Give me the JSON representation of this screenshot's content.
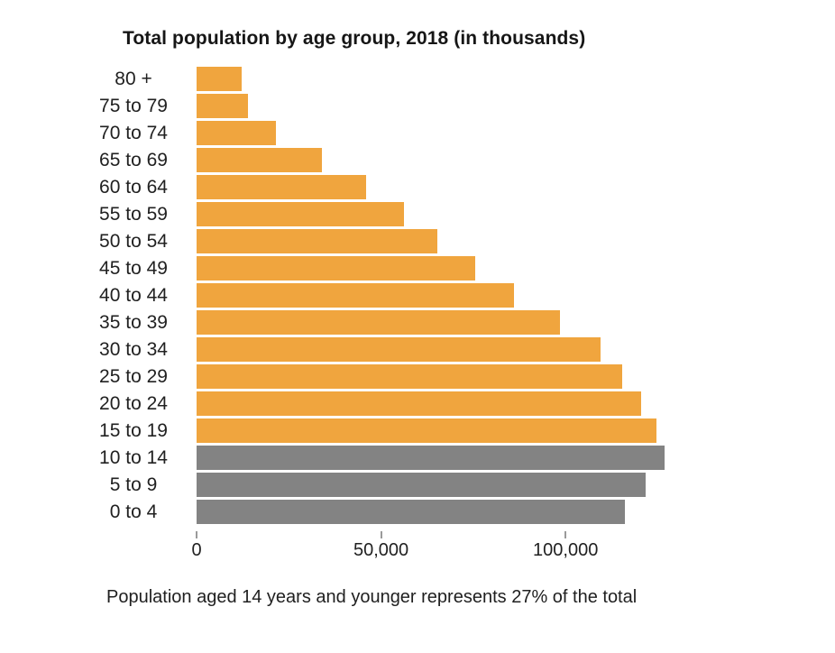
{
  "chart_data": {
    "type": "bar",
    "orientation": "horizontal",
    "title": "Total population by age group, 2018 (in thousands)",
    "categories": [
      "80 +",
      "75 to 79",
      "70 to 74",
      "65 to 69",
      "60 to 64",
      "55 to 59",
      "50 to 54",
      "45 to 49",
      "40 to 44",
      "35 to 39",
      "30 to 34",
      "25 to 29",
      "20 to 24",
      "15 to 19",
      "10 to 14",
      "5 to 9",
      "0 to 4"
    ],
    "values": [
      12200,
      13800,
      21400,
      34000,
      46000,
      56300,
      65200,
      75500,
      85900,
      98400,
      109400,
      115300,
      120500,
      124700,
      126900,
      121600,
      116000
    ],
    "bar_colors": [
      "#F0A53E",
      "#F0A53E",
      "#F0A53E",
      "#F0A53E",
      "#F0A53E",
      "#F0A53E",
      "#F0A53E",
      "#F0A53E",
      "#F0A53E",
      "#F0A53E",
      "#F0A53E",
      "#F0A53E",
      "#F0A53E",
      "#F0A53E",
      "#838383",
      "#838383",
      "#838383"
    ],
    "xlim": [
      0,
      126900
    ],
    "x_ticks": [
      {
        "value": 0,
        "label": "0"
      },
      {
        "value": 50000,
        "label": "50,000"
      },
      {
        "value": 100000,
        "label": "100,000"
      }
    ],
    "grid": false,
    "legend": "none",
    "caption": "Population aged 14 years and younger represents 27% of the total"
  },
  "colors": {
    "highlight_orange": "#F0A53E",
    "muted_gray": "#838383",
    "tick_mark": "#9a9a9a",
    "text": "#1f1f1f"
  }
}
